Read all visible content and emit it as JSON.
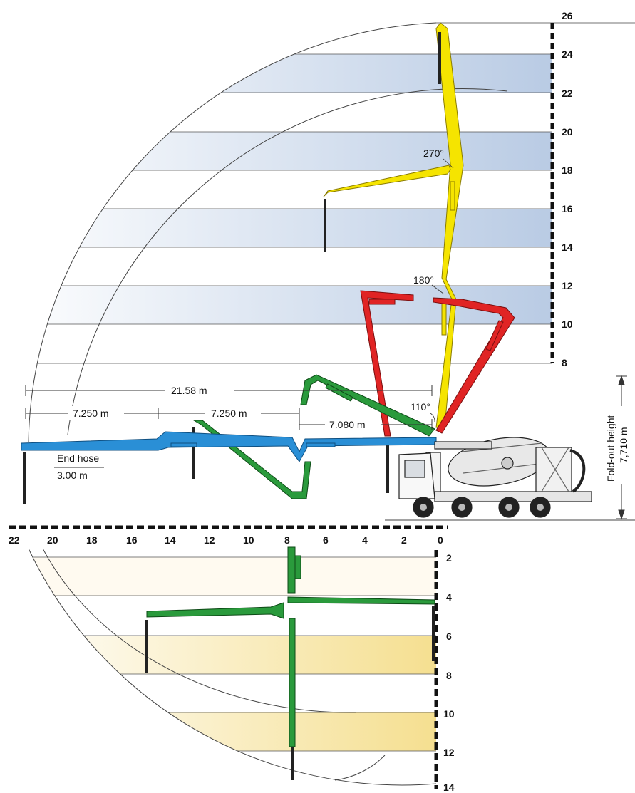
{
  "diagram": {
    "right_scale_ticks": [
      "26",
      "24",
      "22",
      "20",
      "18",
      "16",
      "14",
      "12",
      "10",
      "8"
    ],
    "bottom_scale_ticks": [
      "22",
      "20",
      "18",
      "16",
      "14",
      "12",
      "10",
      "8",
      "6",
      "4",
      "2",
      "0"
    ],
    "below_scale_ticks": [
      "2",
      "4",
      "6",
      "8",
      "10",
      "12",
      "14"
    ],
    "dimensions": {
      "total_reach": "21.58 m",
      "section1": "7.250 m",
      "section2": "7.250 m",
      "section3": "7.080 m",
      "end_hose_label": "End hose",
      "end_hose_length": "3.00 m",
      "foldout_label": "Fold-out height",
      "foldout_value": "7,710 m"
    },
    "angles": {
      "a270": "270°",
      "a180": "180°",
      "a110": "110°"
    },
    "colors": {
      "boom_yellow": "#f5e400",
      "boom_red": "#e02424",
      "boom_green": "#2a9a3c",
      "boom_blue": "#2a8fd6",
      "band_blue": "#c6d6ea",
      "band_yellow": "#f7e7a6",
      "hose_black": "#222222"
    }
  }
}
